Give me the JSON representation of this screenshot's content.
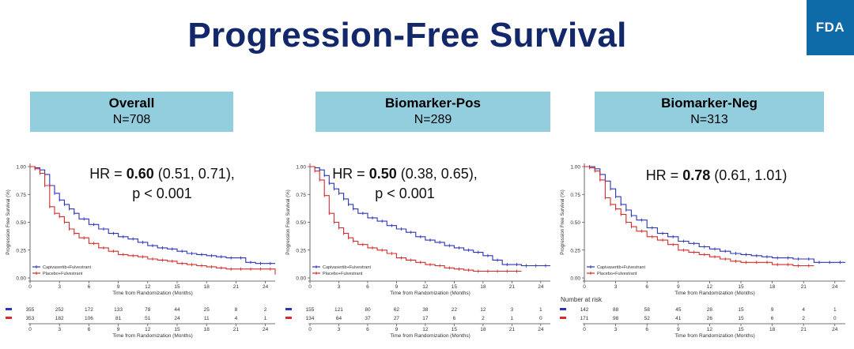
{
  "slide": {
    "title": "Progression-Free Survival",
    "logo": "FDA"
  },
  "colors": {
    "treatment": "#2b34b8",
    "placebo": "#d62b2b",
    "header_bg": "#93cedf",
    "title": "#12286b"
  },
  "panels": [
    {
      "name": "Overall",
      "n_label": "N=708"
    },
    {
      "name": "Biomarker-Pos",
      "n_label": "N=289"
    },
    {
      "name": "Biomarker-Neg",
      "n_label": "N=313"
    }
  ],
  "chart_data": [
    {
      "type": "line",
      "title": "",
      "xlabel": "Time from Randomization (Months)",
      "ylabel": "Progression Free Survival (%)",
      "xlim": [
        0,
        25
      ],
      "ylim": [
        0,
        1
      ],
      "x_ticks": [
        0,
        3,
        6,
        9,
        12,
        15,
        18,
        21,
        24
      ],
      "y_ticks": [
        "0.00",
        "0.25",
        "0.50",
        "0.75",
        "1.00"
      ],
      "y_tick_values": [
        0,
        0.25,
        0.5,
        0.75,
        1.0
      ],
      "grid": false,
      "legend_position": "bottom-left",
      "hr_text": {
        "prefix": "HR = ",
        "value": "0.60",
        "ci": " (0.51, 0.71),",
        "p": "p < 0.001"
      },
      "risk_table": {
        "title": "",
        "ticks": [
          0,
          3,
          6,
          9,
          12,
          15,
          18,
          21,
          24
        ],
        "xlabel": "Time from Randomization (Months)"
      },
      "series": [
        {
          "name": "Capivasertib+Fulvestrant",
          "color": "#2b34b8",
          "x": [
            0,
            0.5,
            1,
            1.5,
            2,
            2.5,
            3,
            3.5,
            4,
            4.5,
            5,
            6,
            7,
            8,
            9,
            10,
            11,
            12,
            13,
            14,
            15,
            16,
            17,
            18,
            19,
            20,
            21,
            22,
            23,
            24,
            25
          ],
          "y": [
            1.0,
            0.99,
            0.97,
            0.93,
            0.83,
            0.76,
            0.7,
            0.66,
            0.62,
            0.58,
            0.53,
            0.48,
            0.44,
            0.4,
            0.37,
            0.35,
            0.32,
            0.29,
            0.27,
            0.26,
            0.24,
            0.22,
            0.21,
            0.2,
            0.19,
            0.18,
            0.18,
            0.14,
            0.13,
            0.13,
            0.13
          ],
          "at_risk": [
            355,
            252,
            172,
            133,
            78,
            44,
            25,
            8,
            2
          ]
        },
        {
          "name": "Placebo+Fulvestrant",
          "color": "#d62b2b",
          "x": [
            0,
            0.5,
            1,
            1.5,
            2,
            2.5,
            3,
            3.5,
            4,
            4.5,
            5,
            6,
            7,
            8,
            9,
            10,
            11,
            12,
            13,
            14,
            15,
            16,
            17,
            18,
            19,
            20,
            21,
            22,
            23,
            24,
            25
          ],
          "y": [
            1.0,
            0.98,
            0.94,
            0.83,
            0.64,
            0.58,
            0.55,
            0.5,
            0.44,
            0.4,
            0.36,
            0.31,
            0.27,
            0.24,
            0.21,
            0.2,
            0.19,
            0.17,
            0.16,
            0.15,
            0.13,
            0.12,
            0.11,
            0.1,
            0.09,
            0.08,
            0.08,
            0.08,
            0.08,
            0.08,
            0.03
          ],
          "at_risk": [
            353,
            182,
            106,
            81,
            51,
            24,
            11,
            4,
            1
          ]
        }
      ]
    },
    {
      "type": "line",
      "title": "",
      "xlabel": "Time from Randomization (Months)",
      "ylabel": "Progression Free Survival (%)",
      "xlim": [
        0,
        25
      ],
      "ylim": [
        0,
        1
      ],
      "x_ticks": [
        0,
        3,
        6,
        9,
        12,
        15,
        18,
        21,
        24
      ],
      "y_ticks": [
        "0.00",
        "0.25",
        "0.50",
        "0.75",
        "1.00"
      ],
      "y_tick_values": [
        0,
        0.25,
        0.5,
        0.75,
        1.0
      ],
      "grid": false,
      "legend_position": "bottom-left",
      "hr_text": {
        "prefix": "HR = ",
        "value": "0.50",
        "ci": " (0.38, 0.65),",
        "p": "p < 0.001"
      },
      "risk_table": {
        "title": "",
        "ticks": [
          0,
          3,
          6,
          9,
          12,
          15,
          18,
          21,
          24
        ],
        "xlabel": "Time from Randomization (Months)"
      },
      "series": [
        {
          "name": "Capivasertib+Fulvestrant",
          "color": "#2b34b8",
          "x": [
            0,
            0.5,
            1,
            1.5,
            2,
            2.5,
            3,
            3.5,
            4,
            4.5,
            5,
            6,
            7,
            8,
            9,
            10,
            11,
            12,
            13,
            14,
            15,
            16,
            17,
            18,
            19,
            20,
            21,
            22,
            23,
            24,
            25
          ],
          "y": [
            1.0,
            0.99,
            0.97,
            0.92,
            0.85,
            0.8,
            0.76,
            0.71,
            0.66,
            0.62,
            0.58,
            0.54,
            0.51,
            0.47,
            0.44,
            0.41,
            0.37,
            0.34,
            0.32,
            0.29,
            0.27,
            0.25,
            0.23,
            0.2,
            0.16,
            0.12,
            0.12,
            0.11,
            0.11,
            0.11,
            0.11
          ],
          "at_risk": [
            155,
            121,
            80,
            62,
            38,
            22,
            12,
            3,
            1
          ]
        },
        {
          "name": "Placebo+Fulvestrant",
          "color": "#d62b2b",
          "x": [
            0,
            0.5,
            1,
            1.5,
            2,
            2.5,
            3,
            3.5,
            4,
            4.5,
            5,
            6,
            7,
            8,
            9,
            10,
            11,
            12,
            13,
            14,
            15,
            16,
            17,
            18,
            19,
            20,
            21,
            22
          ],
          "y": [
            1.0,
            0.96,
            0.88,
            0.74,
            0.58,
            0.5,
            0.45,
            0.4,
            0.36,
            0.33,
            0.3,
            0.27,
            0.25,
            0.22,
            0.18,
            0.16,
            0.14,
            0.12,
            0.11,
            0.09,
            0.08,
            0.07,
            0.06,
            0.06,
            0.06,
            0.06,
            0.06,
            0.06
          ],
          "at_risk": [
            134,
            64,
            37,
            27,
            17,
            6,
            2,
            1,
            0
          ]
        }
      ]
    },
    {
      "type": "line",
      "title": "",
      "xlabel": "Time from Randomization (Months)",
      "ylabel": "Progression Free Survival (%)",
      "xlim": [
        0,
        25
      ],
      "ylim": [
        0,
        1
      ],
      "x_ticks": [
        0,
        3,
        6,
        9,
        12,
        15,
        18,
        21,
        24
      ],
      "y_ticks": [
        "0.00",
        "0.25",
        "0.50",
        "0.75",
        "1.00"
      ],
      "y_tick_values": [
        0,
        0.25,
        0.5,
        0.75,
        1.0
      ],
      "grid": false,
      "legend_position": "bottom-left",
      "hr_text": {
        "prefix": "HR = ",
        "value": "0.78",
        "ci": " (0.61, 1.01)",
        "p": ""
      },
      "risk_table": {
        "title": "Number at risk",
        "ticks": [
          0,
          3,
          6,
          9,
          12,
          15,
          18,
          21,
          24
        ],
        "xlabel": "Time from Randomization (Months)"
      },
      "series": [
        {
          "name": "Capivasertib+Fulvestrant",
          "color": "#2b34b8",
          "x": [
            0,
            0.5,
            1,
            1.5,
            2,
            2.5,
            3,
            3.5,
            4,
            4.5,
            5,
            6,
            7,
            8,
            9,
            10,
            11,
            12,
            13,
            14,
            15,
            16,
            17,
            18,
            19,
            20,
            21,
            22,
            23,
            24,
            25
          ],
          "y": [
            1.0,
            1.0,
            0.98,
            0.93,
            0.87,
            0.8,
            0.73,
            0.66,
            0.61,
            0.56,
            0.52,
            0.45,
            0.4,
            0.37,
            0.33,
            0.31,
            0.28,
            0.26,
            0.24,
            0.22,
            0.21,
            0.2,
            0.19,
            0.18,
            0.18,
            0.17,
            0.17,
            0.14,
            0.14,
            0.14,
            0.14
          ],
          "at_risk": [
            142,
            88,
            58,
            45,
            28,
            15,
            9,
            4,
            1
          ]
        },
        {
          "name": "Placebo+Fulvestrant",
          "color": "#d62b2b",
          "x": [
            0,
            0.5,
            1,
            1.5,
            2,
            2.5,
            3,
            3.5,
            4,
            4.5,
            5,
            6,
            7,
            8,
            9,
            10,
            11,
            12,
            13,
            14,
            15,
            16,
            17,
            18,
            19,
            20,
            21,
            22
          ],
          "y": [
            1.0,
            0.99,
            0.96,
            0.88,
            0.72,
            0.66,
            0.62,
            0.57,
            0.5,
            0.46,
            0.42,
            0.37,
            0.34,
            0.3,
            0.25,
            0.23,
            0.21,
            0.19,
            0.17,
            0.15,
            0.14,
            0.14,
            0.14,
            0.12,
            0.12,
            0.11,
            0.11,
            0.11
          ],
          "at_risk": [
            171,
            98,
            52,
            41,
            26,
            15,
            6,
            2,
            0
          ]
        }
      ]
    }
  ]
}
